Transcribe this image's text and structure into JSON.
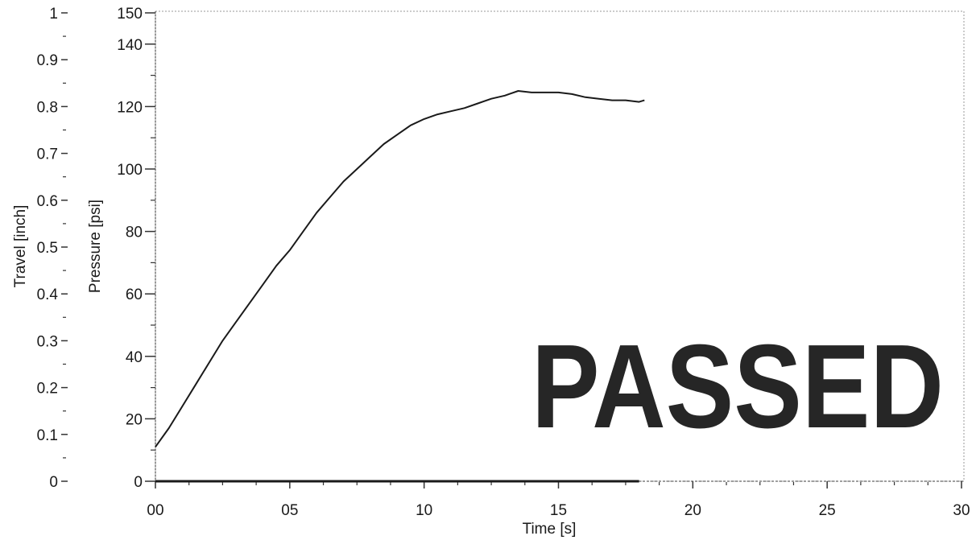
{
  "chart_data": {
    "type": "line",
    "title": "",
    "xlabel": "Time [s]",
    "ylabel_left": "Travel [inch]",
    "ylabel_right": "Pressure [psi]",
    "xlim": [
      0,
      30
    ],
    "ylim_travel": [
      0,
      1
    ],
    "ylim_pressure": [
      0,
      150
    ],
    "x_ticks": [
      {
        "value": 0,
        "label": "00"
      },
      {
        "value": 5,
        "label": "05"
      },
      {
        "value": 10,
        "label": "10"
      },
      {
        "value": 15,
        "label": "15"
      },
      {
        "value": 20,
        "label": "20"
      },
      {
        "value": 25,
        "label": "25"
      },
      {
        "value": 30,
        "label": "30"
      }
    ],
    "travel_ticks": [
      {
        "value": 0,
        "label": "0"
      },
      {
        "value": 0.1,
        "label": "0.1"
      },
      {
        "value": 0.2,
        "label": "0.2"
      },
      {
        "value": 0.3,
        "label": "0.3"
      },
      {
        "value": 0.4,
        "label": "0.4"
      },
      {
        "value": 0.5,
        "label": "0.5"
      },
      {
        "value": 0.6,
        "label": "0.6"
      },
      {
        "value": 0.7,
        "label": "0.7"
      },
      {
        "value": 0.8,
        "label": "0.8"
      },
      {
        "value": 0.9,
        "label": "0.9"
      },
      {
        "value": 1,
        "label": "1"
      }
    ],
    "pressure_ticks": [
      {
        "value": 0,
        "label": "0"
      },
      {
        "value": 20,
        "label": "20"
      },
      {
        "value": 40,
        "label": "40"
      },
      {
        "value": 60,
        "label": "60"
      },
      {
        "value": 80,
        "label": "80"
      },
      {
        "value": 100,
        "label": "100"
      },
      {
        "value": 120,
        "label": "120"
      },
      {
        "value": 140,
        "label": "140"
      },
      {
        "value": 150,
        "label": "150"
      }
    ],
    "series": [
      {
        "axis": "pressure",
        "color": "#1a1a1a",
        "x": [
          0,
          0.5,
          1,
          1.5,
          2,
          2.5,
          3,
          3.5,
          4,
          4.5,
          5,
          5.5,
          6,
          6.5,
          7,
          7.5,
          8,
          8.5,
          9,
          9.5,
          10,
          10.5,
          11,
          11.5,
          12,
          12.5,
          13,
          13.5,
          14,
          14.5,
          15,
          15.5,
          16,
          16.5,
          17,
          17.5,
          18,
          18.2
        ],
        "y": [
          11,
          17,
          24,
          31,
          38,
          45,
          51,
          57,
          63,
          69,
          74,
          80,
          86,
          91,
          96,
          100,
          104,
          108,
          111,
          114,
          116,
          117.5,
          118.5,
          119.5,
          121,
          122.5,
          123.5,
          125,
          124.5,
          124.5,
          124.5,
          124,
          123,
          122.5,
          122,
          122,
          121.5,
          122
        ]
      },
      {
        "axis": "travel",
        "color": "#1a1a1a",
        "x": [
          0,
          18
        ],
        "y": [
          0,
          0
        ]
      }
    ],
    "grid": false,
    "legend": "none"
  },
  "stamp": {
    "text": "PASSED",
    "color": "#262626"
  }
}
